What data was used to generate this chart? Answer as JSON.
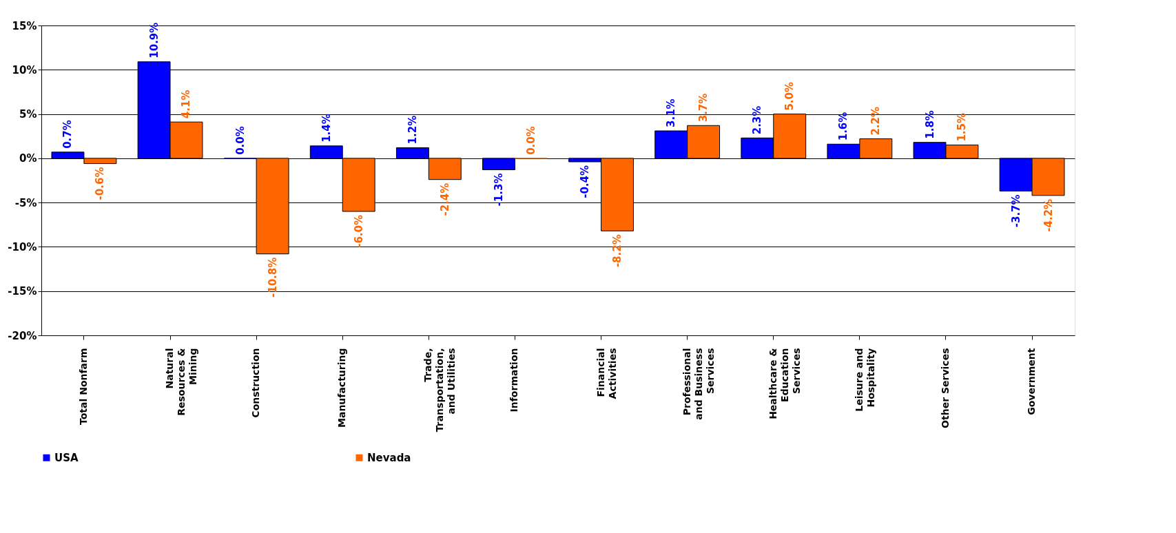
{
  "chart_data": {
    "type": "bar",
    "categories": [
      "Total Nonfarm",
      "Natural Resources & Mining",
      "Construction",
      "Manufacturing",
      "Trade, Transportation, and Utilities",
      "Information",
      "Financial Activities",
      "Professional and Business Services",
      "Healthcare & Education Services",
      "Leisure and Hospitality",
      "Other Services",
      "Government"
    ],
    "series": [
      {
        "name": "USA",
        "color": "#0000ff",
        "values": [
          0.7,
          10.9,
          0.0,
          1.4,
          1.2,
          -1.3,
          -0.4,
          3.1,
          2.3,
          1.6,
          1.8,
          -3.7
        ],
        "value_labels": [
          "0.7%",
          "10.9%",
          "0.0%",
          "1.4%",
          "1.2%",
          "-1.3%",
          "-0.4%",
          "3.1%",
          "2.3%",
          "1.6%",
          "1.8%",
          "-3.7%"
        ]
      },
      {
        "name": "Nevada",
        "color": "#ff6600",
        "values": [
          -0.6,
          4.1,
          -10.8,
          -6.0,
          -2.4,
          0.0,
          -8.2,
          3.7,
          5.0,
          2.2,
          1.5,
          -4.2
        ],
        "value_labels": [
          "-0.6%",
          "4.1%",
          "-10.8%",
          "-6.0%",
          "-2.4%",
          "0.0%",
          "-8.2%",
          "3.7%",
          "5.0%",
          "2.2%",
          "1.5%",
          "-4.2%"
        ]
      }
    ],
    "ylim": [
      -20,
      15
    ],
    "yticks": [
      {
        "value": -20,
        "label": "-20%"
      },
      {
        "value": -15,
        "label": "-15%"
      },
      {
        "value": -10,
        "label": "-10%"
      },
      {
        "value": -5,
        "label": "-5%"
      },
      {
        "value": 0,
        "label": "0%"
      },
      {
        "value": 5,
        "label": "5%"
      },
      {
        "value": 10,
        "label": "10%"
      },
      {
        "value": 15,
        "label": "15%"
      }
    ],
    "grid": "y",
    "legend": "bottom"
  }
}
